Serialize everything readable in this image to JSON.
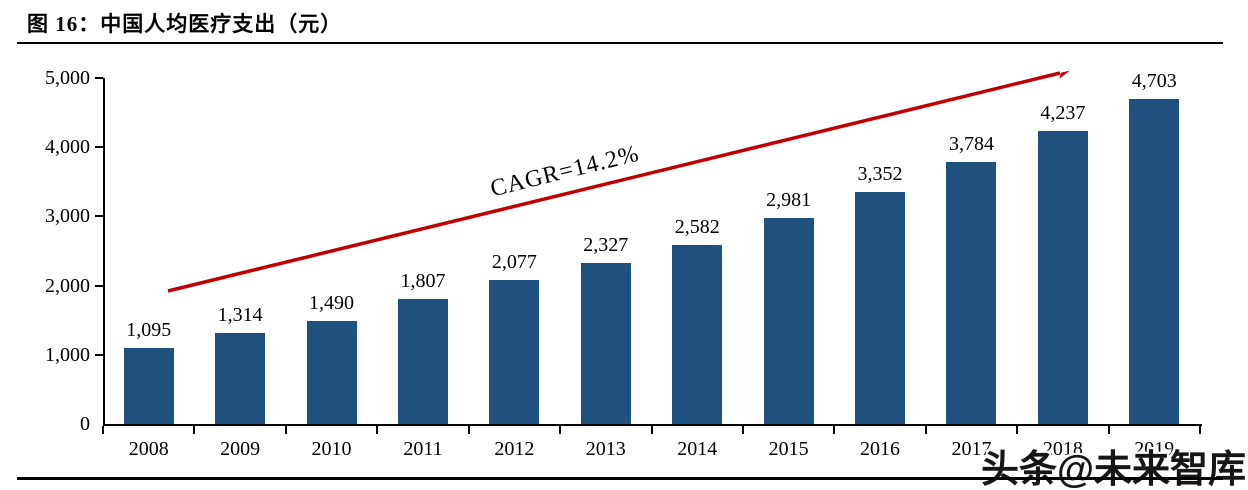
{
  "figure": {
    "title": "图 16：中国人均医疗支出（元）"
  },
  "chart_data": {
    "type": "bar",
    "title": "中国人均医疗支出（元）",
    "categories": [
      "2008",
      "2009",
      "2010",
      "2011",
      "2012",
      "2013",
      "2014",
      "2015",
      "2016",
      "2017",
      "2018",
      "2019"
    ],
    "values": [
      1095,
      1314,
      1490,
      1807,
      2077,
      2327,
      2582,
      2981,
      3352,
      3784,
      4237,
      4703
    ],
    "value_labels": [
      "1,095",
      "1,314",
      "1,490",
      "1,807",
      "2,077",
      "2,327",
      "2,582",
      "2,981",
      "3,352",
      "3,784",
      "4,237",
      "4,703"
    ],
    "xlabel": "",
    "ylabel": "",
    "ylim": [
      0,
      5000
    ],
    "yticks": [
      0,
      1000,
      2000,
      3000,
      4000,
      5000
    ],
    "ytick_labels": [
      "0",
      "1,000",
      "2,000",
      "3,000",
      "4,000",
      "5,000"
    ],
    "grid": false,
    "legend": false,
    "annotation": "CAGR=14.2%",
    "bar_color": "#1F517E",
    "arrow_color": "#C00000",
    "text_color": "#000000"
  },
  "watermark": {
    "text": "头条@未来智库"
  }
}
